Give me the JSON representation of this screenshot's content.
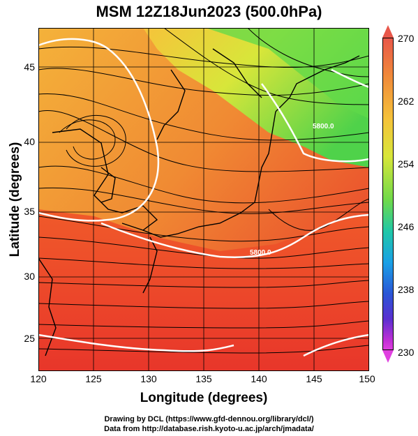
{
  "title": "MSM 12Z18Jun2023 (500.0hPa)",
  "axes": {
    "xlabel": "Longitude (degrees)",
    "ylabel": "Latitude  (degrees)",
    "xticks": [
      "120",
      "125",
      "130",
      "135",
      "140",
      "145",
      "150"
    ],
    "yticks": [
      "45",
      "40",
      "35",
      "30",
      "25"
    ]
  },
  "colorbar": {
    "labels": [
      "270",
      "262",
      "254",
      "246",
      "238",
      "230"
    ]
  },
  "contour_labels": [
    "5800.0",
    "5800.0"
  ],
  "credits": {
    "line1": "Drawing by DCL (https://www.gfd-dennou.org/library/dcl/)",
    "line2": "Data from http://database.rish.kyoto-u.ac.jp/arch/jmadata/"
  },
  "colors": {
    "warm": "#e8362a",
    "mid": "#f5a93a",
    "cool": "#5fd94a"
  }
}
